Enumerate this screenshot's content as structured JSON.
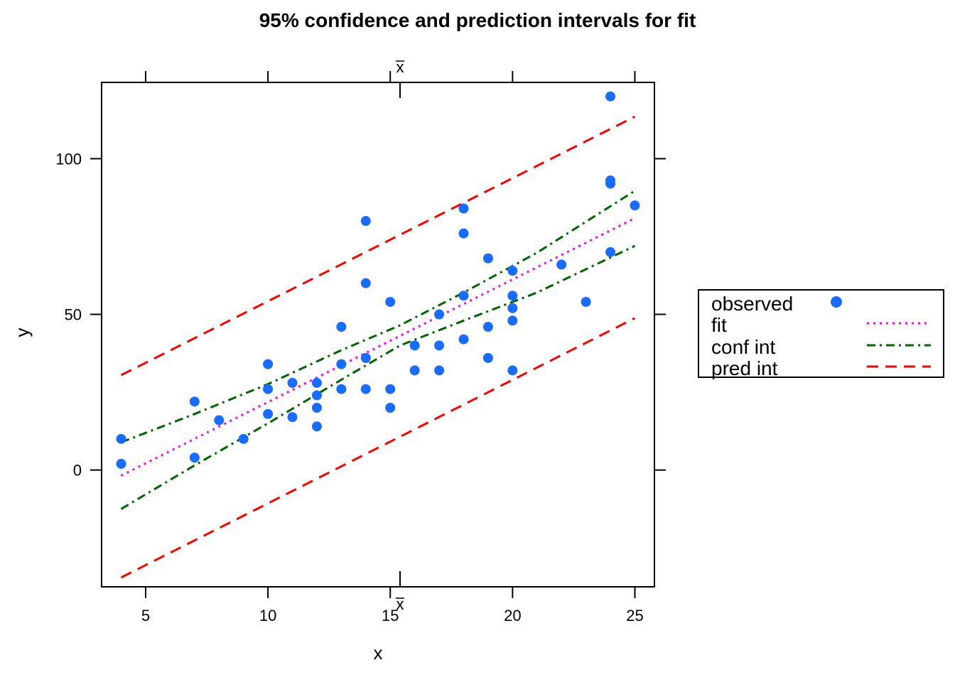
{
  "chart_data": {
    "type": "scatter",
    "title": "95% confidence and prediction intervals for fit",
    "xlabel": "x",
    "ylabel": "y",
    "xlim": [
      3.2,
      25.8
    ],
    "ylim": [
      -37.5,
      124.5
    ],
    "x_ticks": [
      5,
      10,
      15,
      20,
      25
    ],
    "y_ticks": [
      0,
      50,
      100
    ],
    "xbar": 15.4,
    "xbar_label": "x",
    "colors": {
      "observed": "#1a6bff",
      "fit": "#ff00ff",
      "conf_int": "#006400",
      "pred_int": "#ff0000",
      "axis": "#000000"
    },
    "observed": [
      [
        4,
        2
      ],
      [
        4,
        10
      ],
      [
        7,
        4
      ],
      [
        7,
        22
      ],
      [
        8,
        16
      ],
      [
        9,
        10
      ],
      [
        10,
        18
      ],
      [
        10,
        26
      ],
      [
        10,
        34
      ],
      [
        11,
        17
      ],
      [
        11,
        28
      ],
      [
        12,
        14
      ],
      [
        12,
        20
      ],
      [
        12,
        24
      ],
      [
        12,
        28
      ],
      [
        13,
        26
      ],
      [
        13,
        34
      ],
      [
        13,
        46
      ],
      [
        14,
        26
      ],
      [
        14,
        36
      ],
      [
        14,
        60
      ],
      [
        14,
        80
      ],
      [
        15,
        20
      ],
      [
        15,
        26
      ],
      [
        15,
        54
      ],
      [
        16,
        32
      ],
      [
        16,
        40
      ],
      [
        17,
        32
      ],
      [
        17,
        40
      ],
      [
        17,
        50
      ],
      [
        18,
        42
      ],
      [
        18,
        56
      ],
      [
        18,
        76
      ],
      [
        18,
        84
      ],
      [
        19,
        36
      ],
      [
        19,
        46
      ],
      [
        19,
        68
      ],
      [
        20,
        32
      ],
      [
        20,
        48
      ],
      [
        20,
        52
      ],
      [
        20,
        56
      ],
      [
        20,
        64
      ],
      [
        22,
        66
      ],
      [
        23,
        54
      ],
      [
        24,
        70
      ],
      [
        24,
        92
      ],
      [
        24,
        93
      ],
      [
        24,
        120
      ],
      [
        25,
        85
      ]
    ],
    "series": [
      {
        "name": "fit",
        "key": "fit",
        "dash": "dotted",
        "x": [
          4,
          25
        ],
        "y": [
          -1.8,
          80.9
        ]
      },
      {
        "name": "conf int",
        "key": "conf_int_upper",
        "dash": "dashdot",
        "x": [
          4,
          7,
          10,
          13,
          15.4,
          18,
          21,
          25
        ],
        "y": [
          8.9,
          18.0,
          27.6,
          38.5,
          46.5,
          57.0,
          69.8,
          89.7
        ]
      },
      {
        "name": "conf int",
        "key": "conf_int_lower",
        "dash": "dashdot",
        "x": [
          4,
          7,
          10,
          13,
          15.4,
          18,
          21,
          25
        ],
        "y": [
          -12.5,
          1.5,
          15.0,
          29.0,
          40.0,
          48.0,
          57.0,
          72.0
        ]
      },
      {
        "name": "pred int",
        "key": "pred_int_upper",
        "dash": "dashed",
        "x": [
          4,
          25
        ],
        "y": [
          30.5,
          113.5
        ]
      },
      {
        "name": "pred int",
        "key": "pred_int_lower",
        "dash": "dashed",
        "x": [
          4,
          25
        ],
        "y": [
          -34.5,
          48.8
        ]
      }
    ],
    "legend": {
      "placement": "right",
      "entries": [
        {
          "label": "observed",
          "kind": "point",
          "color_key": "observed"
        },
        {
          "label": "fit",
          "kind": "line",
          "dash": "dotted",
          "color_key": "fit"
        },
        {
          "label": "conf int",
          "kind": "line",
          "dash": "dashdot",
          "color_key": "conf_int"
        },
        {
          "label": "pred int",
          "kind": "line",
          "dash": "dashed",
          "color_key": "pred_int"
        }
      ]
    }
  }
}
